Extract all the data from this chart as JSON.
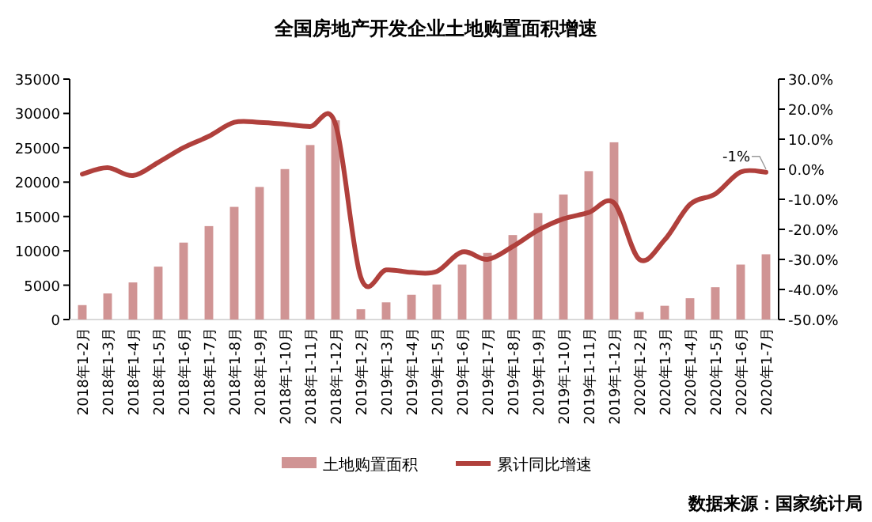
{
  "chart_data": {
    "type": "bar",
    "title": "全国房地产开发企业土地购置面积增速",
    "categories": [
      "2018年1-2月",
      "2018年1-3月",
      "2018年1-4月",
      "2018年1-5月",
      "2018年1-6月",
      "2018年1-7月",
      "2018年1-8月",
      "2018年1-9月",
      "2018年1-10月",
      "2018年1-11月",
      "2018年1-12月",
      "2019年1-2月",
      "2019年1-3月",
      "2019年1-4月",
      "2019年1-5月",
      "2019年1-6月",
      "2019年1-7月",
      "2019年1-8月",
      "2019年1-9月",
      "2019年1-10月",
      "2019年1-11月",
      "2019年1-12月",
      "2020年1-2月",
      "2020年1-3月",
      "2020年1-4月",
      "2020年1-5月",
      "2020年1-6月",
      "2020年1-7月"
    ],
    "series": [
      {
        "name": "土地购置面积",
        "color": "#d09494",
        "values": [
          2100,
          3800,
          5400,
          7700,
          11200,
          13600,
          16400,
          19300,
          21900,
          25400,
          29000,
          1500,
          2500,
          3600,
          5100,
          8000,
          9700,
          12300,
          15500,
          18200,
          21600,
          25800,
          1100,
          2000,
          3100,
          4700,
          8000,
          9500
        ]
      },
      {
        "name": "累计同比增速",
        "type": "line",
        "axis": "y2",
        "color": "#b0403c",
        "values": [
          -1.6,
          0.5,
          -2.1,
          2.3,
          7.2,
          11,
          15.6,
          15.6,
          15,
          14.2,
          15,
          -36,
          -33.5,
          -34.3,
          -34,
          -27.5,
          -30,
          -25.7,
          -20.3,
          -16.5,
          -14.4,
          -11.2,
          -30,
          -23.5,
          -11.7,
          -8.2,
          -0.9,
          -1
        ]
      }
    ],
    "ylim": [
      0,
      35000
    ],
    "yticks": [
      0,
      5000,
      10000,
      15000,
      20000,
      25000,
      30000,
      35000
    ],
    "y2lim": [
      -50,
      30
    ],
    "y2ticks": [
      {
        "value": -50,
        "label": "-50.0%"
      },
      {
        "value": -40,
        "label": "-40.0%"
      },
      {
        "value": -30,
        "label": "-30.0%"
      },
      {
        "value": -20,
        "label": "-20.0%"
      },
      {
        "value": -10,
        "label": "-10.0%"
      },
      {
        "value": 0,
        "label": "0.0%"
      },
      {
        "value": 10,
        "label": "10.0%"
      },
      {
        "value": 20,
        "label": "20.0%"
      },
      {
        "value": 30,
        "label": "30.0%"
      }
    ],
    "legend": "bottom",
    "grid": false,
    "annotations": [
      "-1%",
      "数据来源：国家统计局"
    ]
  }
}
